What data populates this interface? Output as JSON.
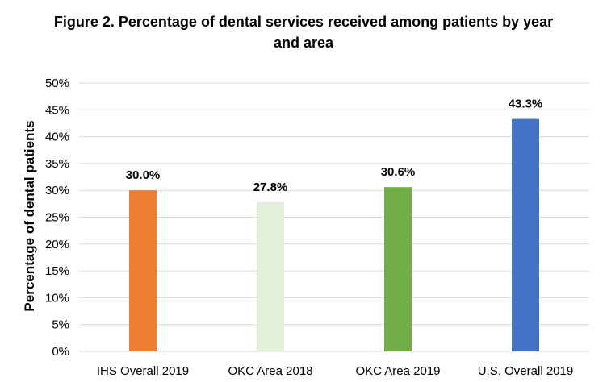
{
  "chart_data": {
    "type": "bar",
    "title": "Figure 2. Percentage of dental services received among patients by year and area",
    "xlabel": "",
    "ylabel": "Percentage of dental patients",
    "ylim": [
      0,
      50
    ],
    "ytick_step": 5,
    "ytick_suffix": "%",
    "grid": true,
    "legend": "none",
    "categories": [
      "IHS Overall 2019",
      "OKC Area 2018",
      "OKC Area 2019",
      "U.S. Overall 2019"
    ],
    "values": [
      30.0,
      27.8,
      30.6,
      43.3
    ],
    "data_labels": [
      "30.0%",
      "27.8%",
      "30.6%",
      "43.3%"
    ],
    "colors": [
      "#ed7d31",
      "#e2efd9",
      "#70ad47",
      "#4472c4"
    ]
  }
}
